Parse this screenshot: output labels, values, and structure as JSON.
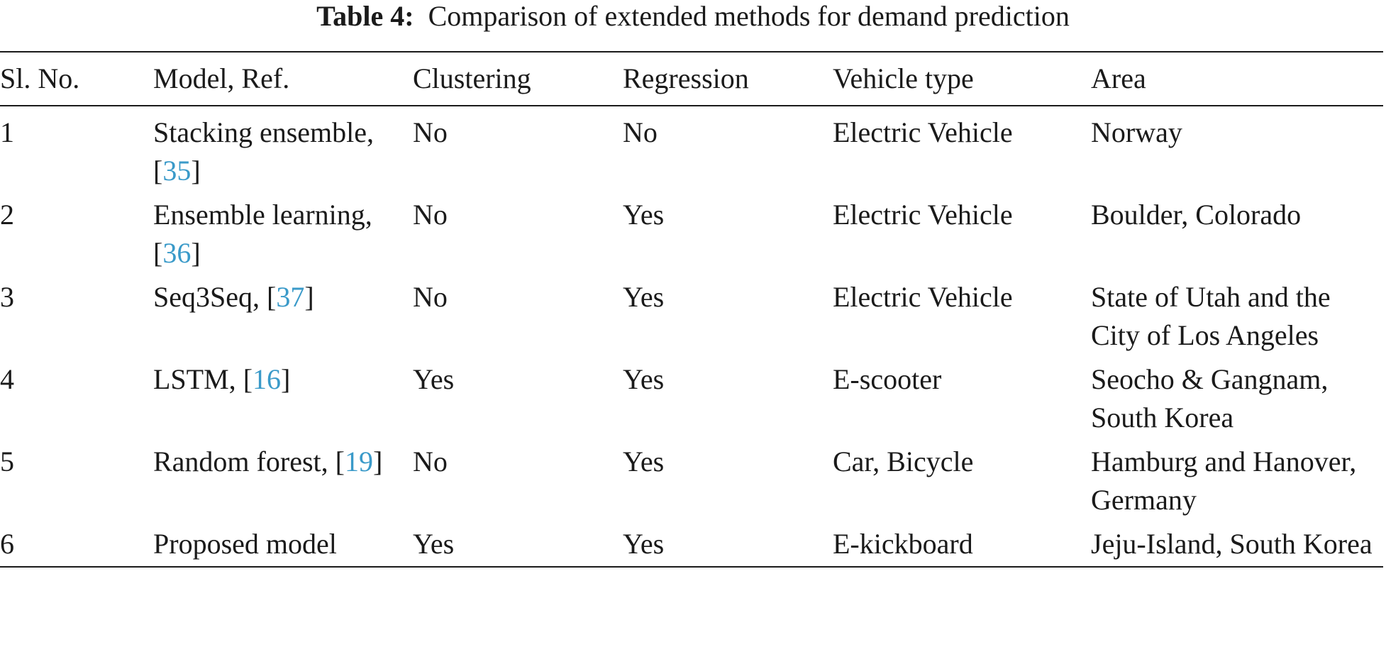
{
  "caption": {
    "label": "Table 4:",
    "text": "Comparison of extended methods for demand prediction"
  },
  "table": {
    "headers": [
      "Sl. No.",
      "Model, Ref.",
      "Clustering",
      "Regression",
      "Vehicle type",
      "Area"
    ],
    "rows": [
      {
        "sl": "1",
        "model": "Stacking ensemble, ",
        "ref": "35",
        "clustering": "No",
        "regression": "No",
        "vehicle": "Electric Vehicle",
        "area": "Norway"
      },
      {
        "sl": "2",
        "model": "Ensemble learning, ",
        "ref": "36",
        "clustering": "No",
        "regression": "Yes",
        "vehicle": "Electric Vehicle",
        "area": "Boulder, Colorado"
      },
      {
        "sl": "3",
        "model": "Seq3Seq, ",
        "ref": "37",
        "clustering": "No",
        "regression": "Yes",
        "vehicle": "Electric Vehicle",
        "area": "State of Utah and the City of Los Angeles"
      },
      {
        "sl": "4",
        "model": "LSTM, ",
        "ref": "16",
        "clustering": "Yes",
        "regression": "Yes",
        "vehicle": "E-scooter",
        "area": "Seocho & Gangnam, South Korea"
      },
      {
        "sl": "5",
        "model": "Random forest, ",
        "ref": "19",
        "clustering": "No",
        "regression": "Yes",
        "vehicle": "Car, Bicycle",
        "area": "Hamburg and Hanover, Germany"
      },
      {
        "sl": "6",
        "model": "Proposed model",
        "ref": "",
        "clustering": "Yes",
        "regression": "Yes",
        "vehicle": "E-kickboard",
        "area": "Jeju-Island, South Korea"
      }
    ]
  },
  "colors": {
    "citation_link": "#3a9ac9",
    "text": "#1a1a1a",
    "rule": "#1a1a1a"
  }
}
